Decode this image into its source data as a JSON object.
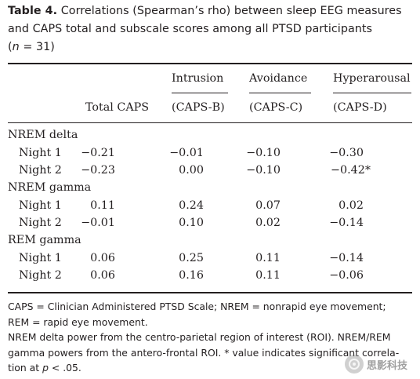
{
  "caption": {
    "label": "Table 4.",
    "line1": "Correlations (Spearman’s rho) between sleep EEG measures",
    "line2": "and CAPS total and subscale scores among all PTSD participants",
    "line3_open": "(",
    "line3_n": "n",
    "line3_rest": " = 31)"
  },
  "header": {
    "col1": "Total CAPS",
    "col2_top": "Intrusion",
    "col2_bottom": "(CAPS-B)",
    "col3_top": "Avoidance",
    "col3_bottom": "(CAPS-C)",
    "col4_top": "Hyperarousal",
    "col4_bottom": "(CAPS-D)"
  },
  "groups": [
    {
      "title": "NREM delta",
      "rows": [
        {
          "label": "Night 1",
          "values": [
            "−0.21",
            "−0.01",
            "−0.10",
            "−0.30"
          ]
        },
        {
          "label": "Night 2",
          "values": [
            "−0.23",
            "0.00",
            "−0.10",
            "−0.42*"
          ]
        }
      ]
    },
    {
      "title": "NREM gamma",
      "rows": [
        {
          "label": "Night 1",
          "values": [
            "0.11",
            "0.24",
            "0.07",
            "0.02"
          ]
        },
        {
          "label": "Night 2",
          "values": [
            "−0.01",
            "0.10",
            "0.02",
            "−0.14"
          ]
        }
      ]
    },
    {
      "title": "REM gamma",
      "rows": [
        {
          "label": "Night 1",
          "values": [
            "0.06",
            "0.25",
            "0.11",
            "−0.14"
          ]
        },
        {
          "label": "Night 2",
          "values": [
            "0.06",
            "0.16",
            "0.11",
            "−0.06"
          ]
        }
      ]
    }
  ],
  "footnotes": {
    "line1": "CAPS = Clinician Administered PTSD Scale; NREM = nonrapid eye movement;",
    "line2": "REM = rapid eye movement.",
    "line3": "NREM delta power from the centro-parietal region of interest (ROI). NREM/REM",
    "line4": "gamma powers from the antero-frontal ROI. * value indicates significant correla-",
    "line5_a": "tion at ",
    "line5_p": "p",
    "line5_b": " < .05."
  },
  "watermark": {
    "text": "思影科技"
  }
}
